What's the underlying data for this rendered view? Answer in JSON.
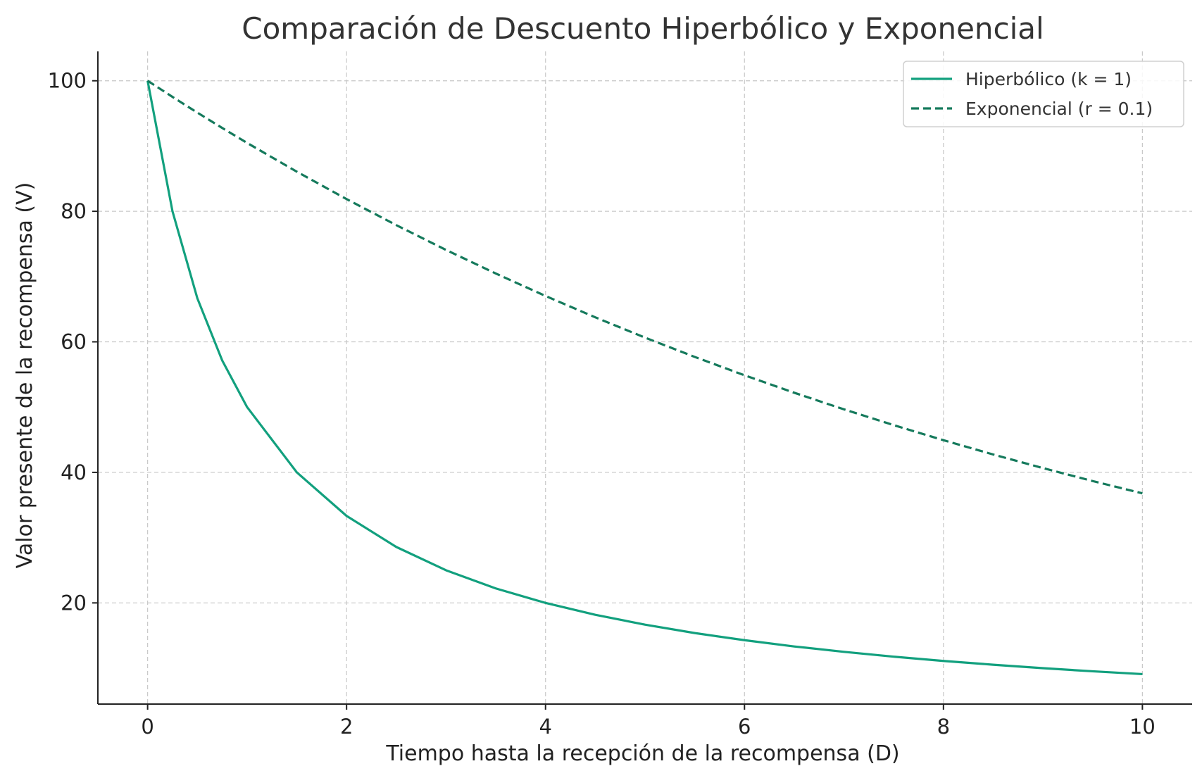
{
  "chart_data": {
    "type": "line",
    "title": "Comparación de Descuento Hiperbólico y Exponencial",
    "xlabel": "Tiempo hasta la recepción de la recompensa (D)",
    "ylabel": "Valor presente de la recompensa (V)",
    "xlim": [
      -0.5,
      10.5
    ],
    "ylim": [
      4.5,
      104.5
    ],
    "x_ticks": [
      0,
      2,
      4,
      6,
      8,
      10
    ],
    "y_ticks": [
      20,
      40,
      60,
      80,
      100
    ],
    "grid": true,
    "legend_position": "top-right",
    "x": [
      0,
      0.25,
      0.5,
      0.75,
      1,
      1.5,
      2,
      2.5,
      3,
      3.5,
      4,
      4.5,
      5,
      5.5,
      6,
      6.5,
      7,
      7.5,
      8,
      8.5,
      9,
      9.5,
      10
    ],
    "series": [
      {
        "name": "Hiperbólico (k = 1)",
        "color": "#12a07e",
        "style": "solid",
        "values": [
          100,
          80,
          66.67,
          57.14,
          50,
          40,
          33.33,
          28.57,
          25,
          22.22,
          20,
          18.18,
          16.67,
          15.38,
          14.29,
          13.33,
          12.5,
          11.76,
          11.11,
          10.53,
          10,
          9.52,
          9.09
        ]
      },
      {
        "name": "Exponencial (r = 0.1)",
        "color": "#157a5c",
        "style": "dashed",
        "values": [
          100,
          97.53,
          95.12,
          92.77,
          90.48,
          86.07,
          81.87,
          77.88,
          74.08,
          70.47,
          67.03,
          63.76,
          60.65,
          57.69,
          54.88,
          52.2,
          49.66,
          47.24,
          44.93,
          42.74,
          40.66,
          38.67,
          36.79
        ]
      }
    ]
  }
}
